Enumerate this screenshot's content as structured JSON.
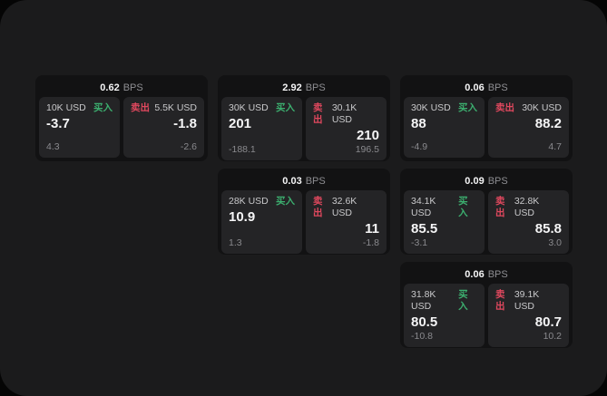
{
  "labels": {
    "bps_unit": "BPS",
    "buy": "买入",
    "sell": "卖出"
  },
  "colors": {
    "page_bg": "#050505",
    "panel_bg": "#1b1b1c",
    "card_bg": "#121213",
    "tile_bg": "#242426",
    "buy_green": "#3caf6f",
    "sell_red": "#e0485e",
    "text_primary": "#f5f5f6",
    "text_secondary": "#c9c9cb",
    "text_muted": "#8a8a8e"
  },
  "cards": [
    {
      "col": 1,
      "row": 1,
      "bps": "0.62",
      "buy": {
        "amount": "10K USD",
        "value": "-3.7",
        "delta": "4.3"
      },
      "sell": {
        "amount": "5.5K USD",
        "value": "-1.8",
        "delta": "-2.6"
      }
    },
    {
      "col": 2,
      "row": 1,
      "bps": "2.92",
      "buy": {
        "amount": "30K USD",
        "value": "201",
        "delta": "-188.1"
      },
      "sell": {
        "amount": "30.1K USD",
        "value": "210",
        "delta": "196.5"
      }
    },
    {
      "col": 3,
      "row": 1,
      "bps": "0.06",
      "buy": {
        "amount": "30K USD",
        "value": "88",
        "delta": "-4.9"
      },
      "sell": {
        "amount": "30K USD",
        "value": "88.2",
        "delta": "4.7"
      }
    },
    {
      "col": 2,
      "row": 2,
      "bps": "0.03",
      "buy": {
        "amount": "28K USD",
        "value": "10.9",
        "delta": "1.3"
      },
      "sell": {
        "amount": "32.6K USD",
        "value": "11",
        "delta": "-1.8"
      }
    },
    {
      "col": 3,
      "row": 2,
      "bps": "0.09",
      "buy": {
        "amount": "34.1K USD",
        "value": "85.5",
        "delta": "-3.1"
      },
      "sell": {
        "amount": "32.8K USD",
        "value": "85.8",
        "delta": "3.0"
      }
    },
    {
      "col": 3,
      "row": 3,
      "bps": "0.06",
      "buy": {
        "amount": "31.8K USD",
        "value": "80.5",
        "delta": "-10.8"
      },
      "sell": {
        "amount": "39.1K USD",
        "value": "80.7",
        "delta": "10.2"
      }
    }
  ]
}
